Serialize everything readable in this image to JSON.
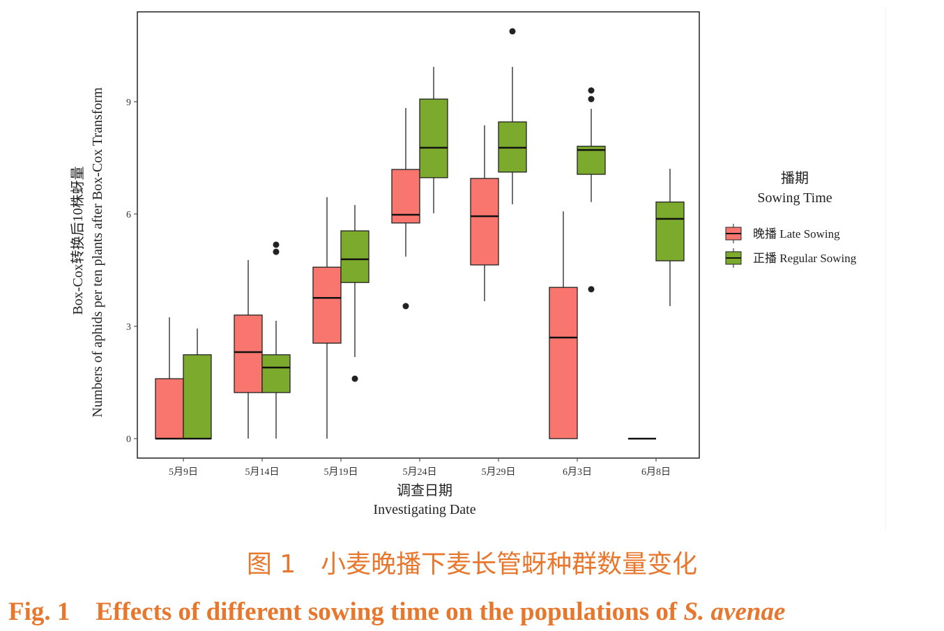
{
  "chart_data": {
    "type": "boxplot",
    "title": "",
    "xlabel_cn": "调查日期",
    "xlabel": "Investigating Date",
    "ylabel_cn": "Box-Cox转换后10株蚜量",
    "ylabel": "Numbers of aphids per ten plants after Box-Cox Transform",
    "ylim": [
      -0.52,
      11.4
    ],
    "yticks": [
      0,
      3,
      6,
      9
    ],
    "grid": false,
    "legend_placement": "right",
    "legend_title_cn": "播期",
    "legend_title": "Sowing Time",
    "categories": [
      "5月9日",
      "5月14日",
      "5月19日",
      "5月24日",
      "5月29日",
      "6月3日",
      "6月8日"
    ],
    "series": [
      {
        "name": "晚播 Late Sowing",
        "color": "#f8766d",
        "boxes": [
          {
            "min": 0,
            "q1": 0,
            "median": 0,
            "q3": 1.6,
            "max": 3.24,
            "outliers": []
          },
          {
            "min": 0,
            "q1": 1.23,
            "median": 2.31,
            "q3": 3.3,
            "max": 4.77,
            "outliers": []
          },
          {
            "min": 0,
            "q1": 2.55,
            "median": 3.76,
            "q3": 4.58,
            "max": 6.45,
            "outliers": []
          },
          {
            "min": 4.86,
            "q1": 5.76,
            "median": 5.98,
            "q3": 7.19,
            "max": 8.83,
            "outliers": [
              3.54
            ]
          },
          {
            "min": 3.67,
            "q1": 4.64,
            "median": 5.94,
            "q3": 6.95,
            "max": 8.37,
            "outliers": []
          },
          {
            "min": 0,
            "q1": 0,
            "median": 2.7,
            "q3": 4.04,
            "max": 6.07,
            "outliers": []
          },
          {
            "min": 0,
            "q1": 0,
            "median": 0,
            "q3": 0,
            "max": 0,
            "outliers": []
          }
        ]
      },
      {
        "name": "正播 Regular Sowing",
        "color": "#7caa2d",
        "boxes": [
          {
            "min": 0,
            "q1": 0,
            "median": 0,
            "q3": 2.24,
            "max": 2.94,
            "outliers": []
          },
          {
            "min": 0,
            "q1": 1.23,
            "median": 1.9,
            "q3": 2.24,
            "max": 3.15,
            "outliers": [
              5.18,
              4.99
            ]
          },
          {
            "min": 2.18,
            "q1": 4.17,
            "median": 4.79,
            "q3": 5.55,
            "max": 6.24,
            "outliers": [
              1.6
            ]
          },
          {
            "min": 6.02,
            "q1": 6.97,
            "median": 7.77,
            "q3": 9.07,
            "max": 9.93,
            "outliers": []
          },
          {
            "min": 6.26,
            "q1": 7.12,
            "median": 7.77,
            "q3": 8.46,
            "max": 9.93,
            "outliers": [
              10.88
            ]
          },
          {
            "min": 6.32,
            "q1": 7.06,
            "median": 7.71,
            "q3": 7.81,
            "max": 8.81,
            "outliers": [
              9.3,
              9.07,
              3.99
            ]
          },
          {
            "min": 3.54,
            "q1": 4.75,
            "median": 5.87,
            "q3": 6.32,
            "max": 7.21,
            "outliers": []
          }
        ]
      }
    ]
  },
  "caption": {
    "cn": "图 1　小麦晚播下麦长管蚜种群数量变化",
    "en_prefix": "Fig. 1　Effects of different sowing time on the populations of ",
    "en_species": "S. avenae"
  }
}
